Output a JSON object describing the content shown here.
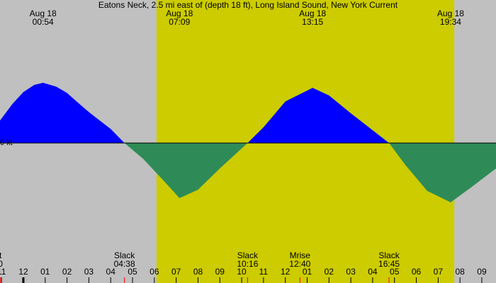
{
  "chart_data": {
    "type": "area",
    "title": "Eatons Neck, 2.5 mi east of (depth 18 ft), Long Island Sound, New York Current",
    "x": [
      -1.07,
      -0.5,
      0,
      0.5,
      0.9,
      1.5,
      2,
      2.5,
      3,
      3.5,
      4,
      4.63,
      5.5,
      6.5,
      7.15,
      8,
      9,
      10.27,
      11,
      12,
      13.25,
      14,
      15,
      16.75,
      17.5,
      18.5,
      19.57,
      20.5,
      21.65
    ],
    "values": [
      0.53,
      0.92,
      1.2,
      1.37,
      1.42,
      1.33,
      1.18,
      0.95,
      0.73,
      0.53,
      0.33,
      0,
      -0.38,
      -0.93,
      -1.3,
      -1.1,
      -0.6,
      0,
      0.37,
      0.98,
      1.3,
      1.12,
      0.7,
      0,
      -0.52,
      -1.13,
      -1.4,
      -1.05,
      -0.6
    ],
    "flood_color": "#0000ff",
    "ebb_color": "#2e8b57",
    "background_color": "#c0c0c0",
    "daylight_color": "#cccc00",
    "daylight": [
      6.1,
      19.74
    ],
    "xlim": [
      -1.07,
      21.65
    ],
    "ylim": [
      -3.3,
      3.37
    ],
    "yticks": [
      {
        "value": 0,
        "label": "0 kt"
      }
    ],
    "xticks": [
      {
        "value": -1,
        "label": "11"
      },
      {
        "value": 0,
        "label": "12"
      },
      {
        "value": 1,
        "label": "01"
      },
      {
        "value": 2,
        "label": "02"
      },
      {
        "value": 3,
        "label": "03"
      },
      {
        "value": 4,
        "label": "04"
      },
      {
        "value": 5,
        "label": "05"
      },
      {
        "value": 6,
        "label": "06"
      },
      {
        "value": 7,
        "label": "07"
      },
      {
        "value": 8,
        "label": "08"
      },
      {
        "value": 9,
        "label": "09"
      },
      {
        "value": 10,
        "label": "10"
      },
      {
        "value": 11,
        "label": "11"
      },
      {
        "value": 12,
        "label": "12"
      },
      {
        "value": 13,
        "label": "01"
      },
      {
        "value": 14,
        "label": "02"
      },
      {
        "value": 15,
        "label": "03"
      },
      {
        "value": 16,
        "label": "04"
      },
      {
        "value": 17,
        "label": "05"
      },
      {
        "value": 18,
        "label": "06"
      },
      {
        "value": 19,
        "label": "07"
      },
      {
        "value": 20,
        "label": "08"
      },
      {
        "value": 21,
        "label": "09"
      }
    ],
    "extremes": [
      {
        "date": "Aug 18",
        "time": "00:54",
        "x": 0.9
      },
      {
        "date": "Aug 18",
        "time": "07:09",
        "x": 7.15
      },
      {
        "date": "Aug 18",
        "time": "13:15",
        "x": 13.25
      },
      {
        "date": "Aug 18",
        "time": "19:34",
        "x": 19.57
      }
    ],
    "events": [
      {
        "label": "t",
        "time": "0",
        "x": -1.05
      },
      {
        "label": "Slack",
        "time": "04:38",
        "x": 4.63
      },
      {
        "label": "Slack",
        "time": "10:16",
        "x": 10.27
      },
      {
        "label": "Mrise",
        "time": "12:40",
        "x": 12.67
      },
      {
        "label": "Slack",
        "time": "16:45",
        "x": 16.75
      }
    ]
  }
}
